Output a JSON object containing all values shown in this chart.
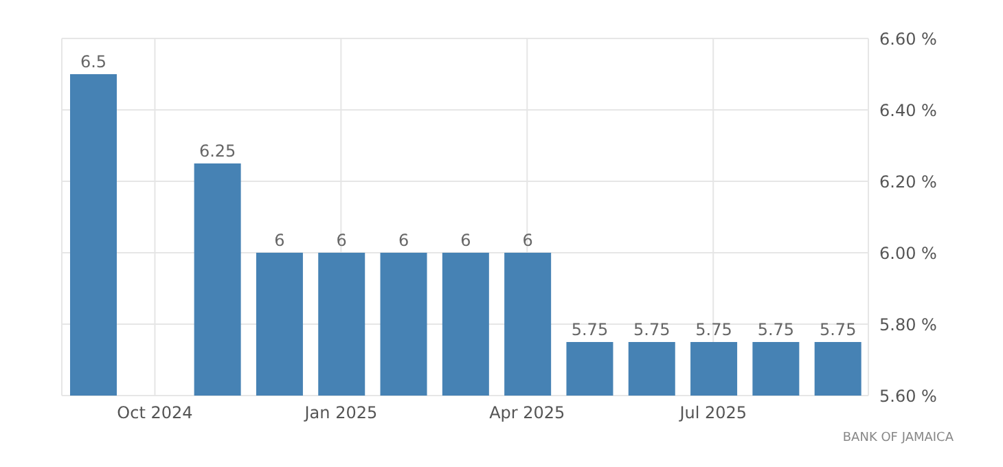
{
  "chart_data": {
    "type": "bar",
    "categories": [
      null,
      "Oct 2024",
      null,
      null,
      "Jan 2025",
      null,
      null,
      "Apr 2025",
      null,
      null,
      "Jul 2025",
      null,
      null
    ],
    "values": [
      6.5,
      null,
      6.25,
      6,
      6,
      6,
      6,
      6,
      5.75,
      5.75,
      5.75,
      5.75,
      5.75
    ],
    "color": "#4682b4",
    "ylim": [
      5.6,
      6.6
    ],
    "yticks": [
      {
        "value": 5.6,
        "label": "5.60 %"
      },
      {
        "value": 5.8,
        "label": "5.80 %"
      },
      {
        "value": 6.0,
        "label": "6.00 %"
      },
      {
        "value": 6.2,
        "label": "6.20 %"
      },
      {
        "value": 6.4,
        "label": "6.40 %"
      },
      {
        "value": 6.6,
        "label": "6.60 %"
      }
    ],
    "grid": true,
    "data_labels": true,
    "annotations": [
      "BANK OF JAMAICA"
    ]
  }
}
